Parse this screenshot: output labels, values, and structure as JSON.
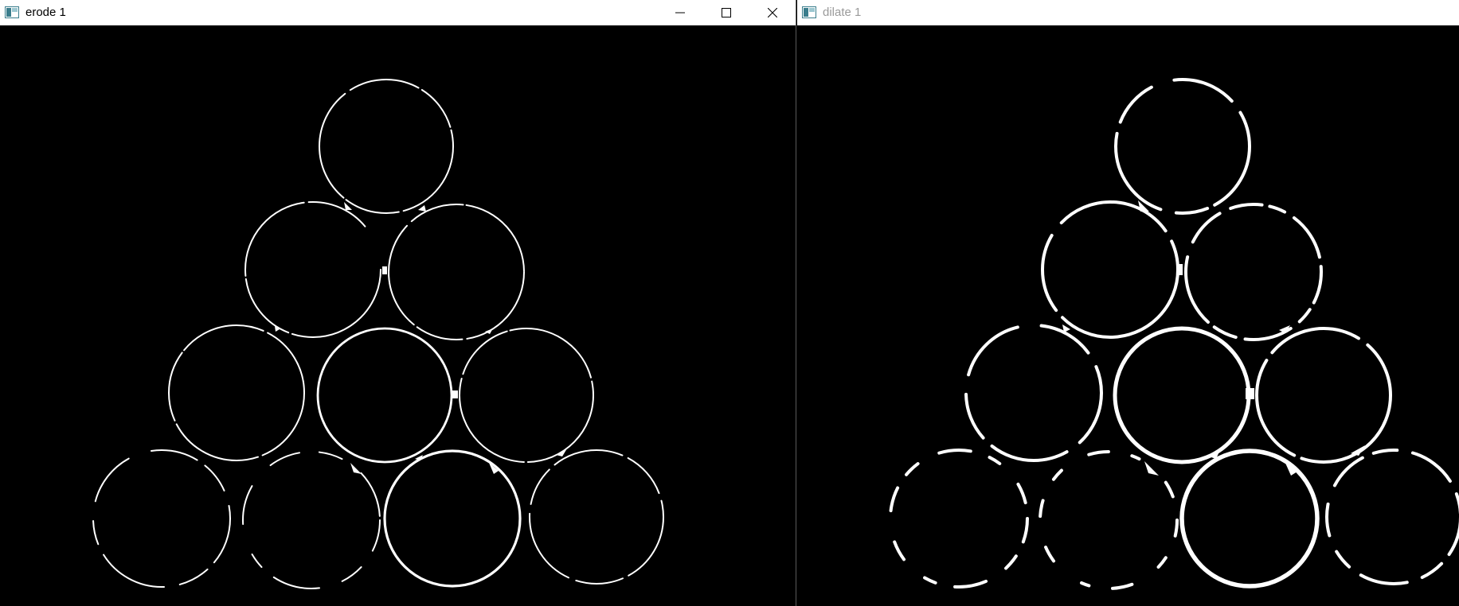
{
  "windows": [
    {
      "id": "erode",
      "title": "erode 1",
      "active": true,
      "controls": [
        "minimize-icon",
        "maximize-icon",
        "close-icon"
      ]
    },
    {
      "id": "dilate",
      "title": "dilate 1",
      "active": false
    }
  ],
  "colors": {
    "titlebar": "#ffffff",
    "canvas": "#000000",
    "stroke": "#ffffff",
    "inactive_title": "#9a9a9a"
  }
}
